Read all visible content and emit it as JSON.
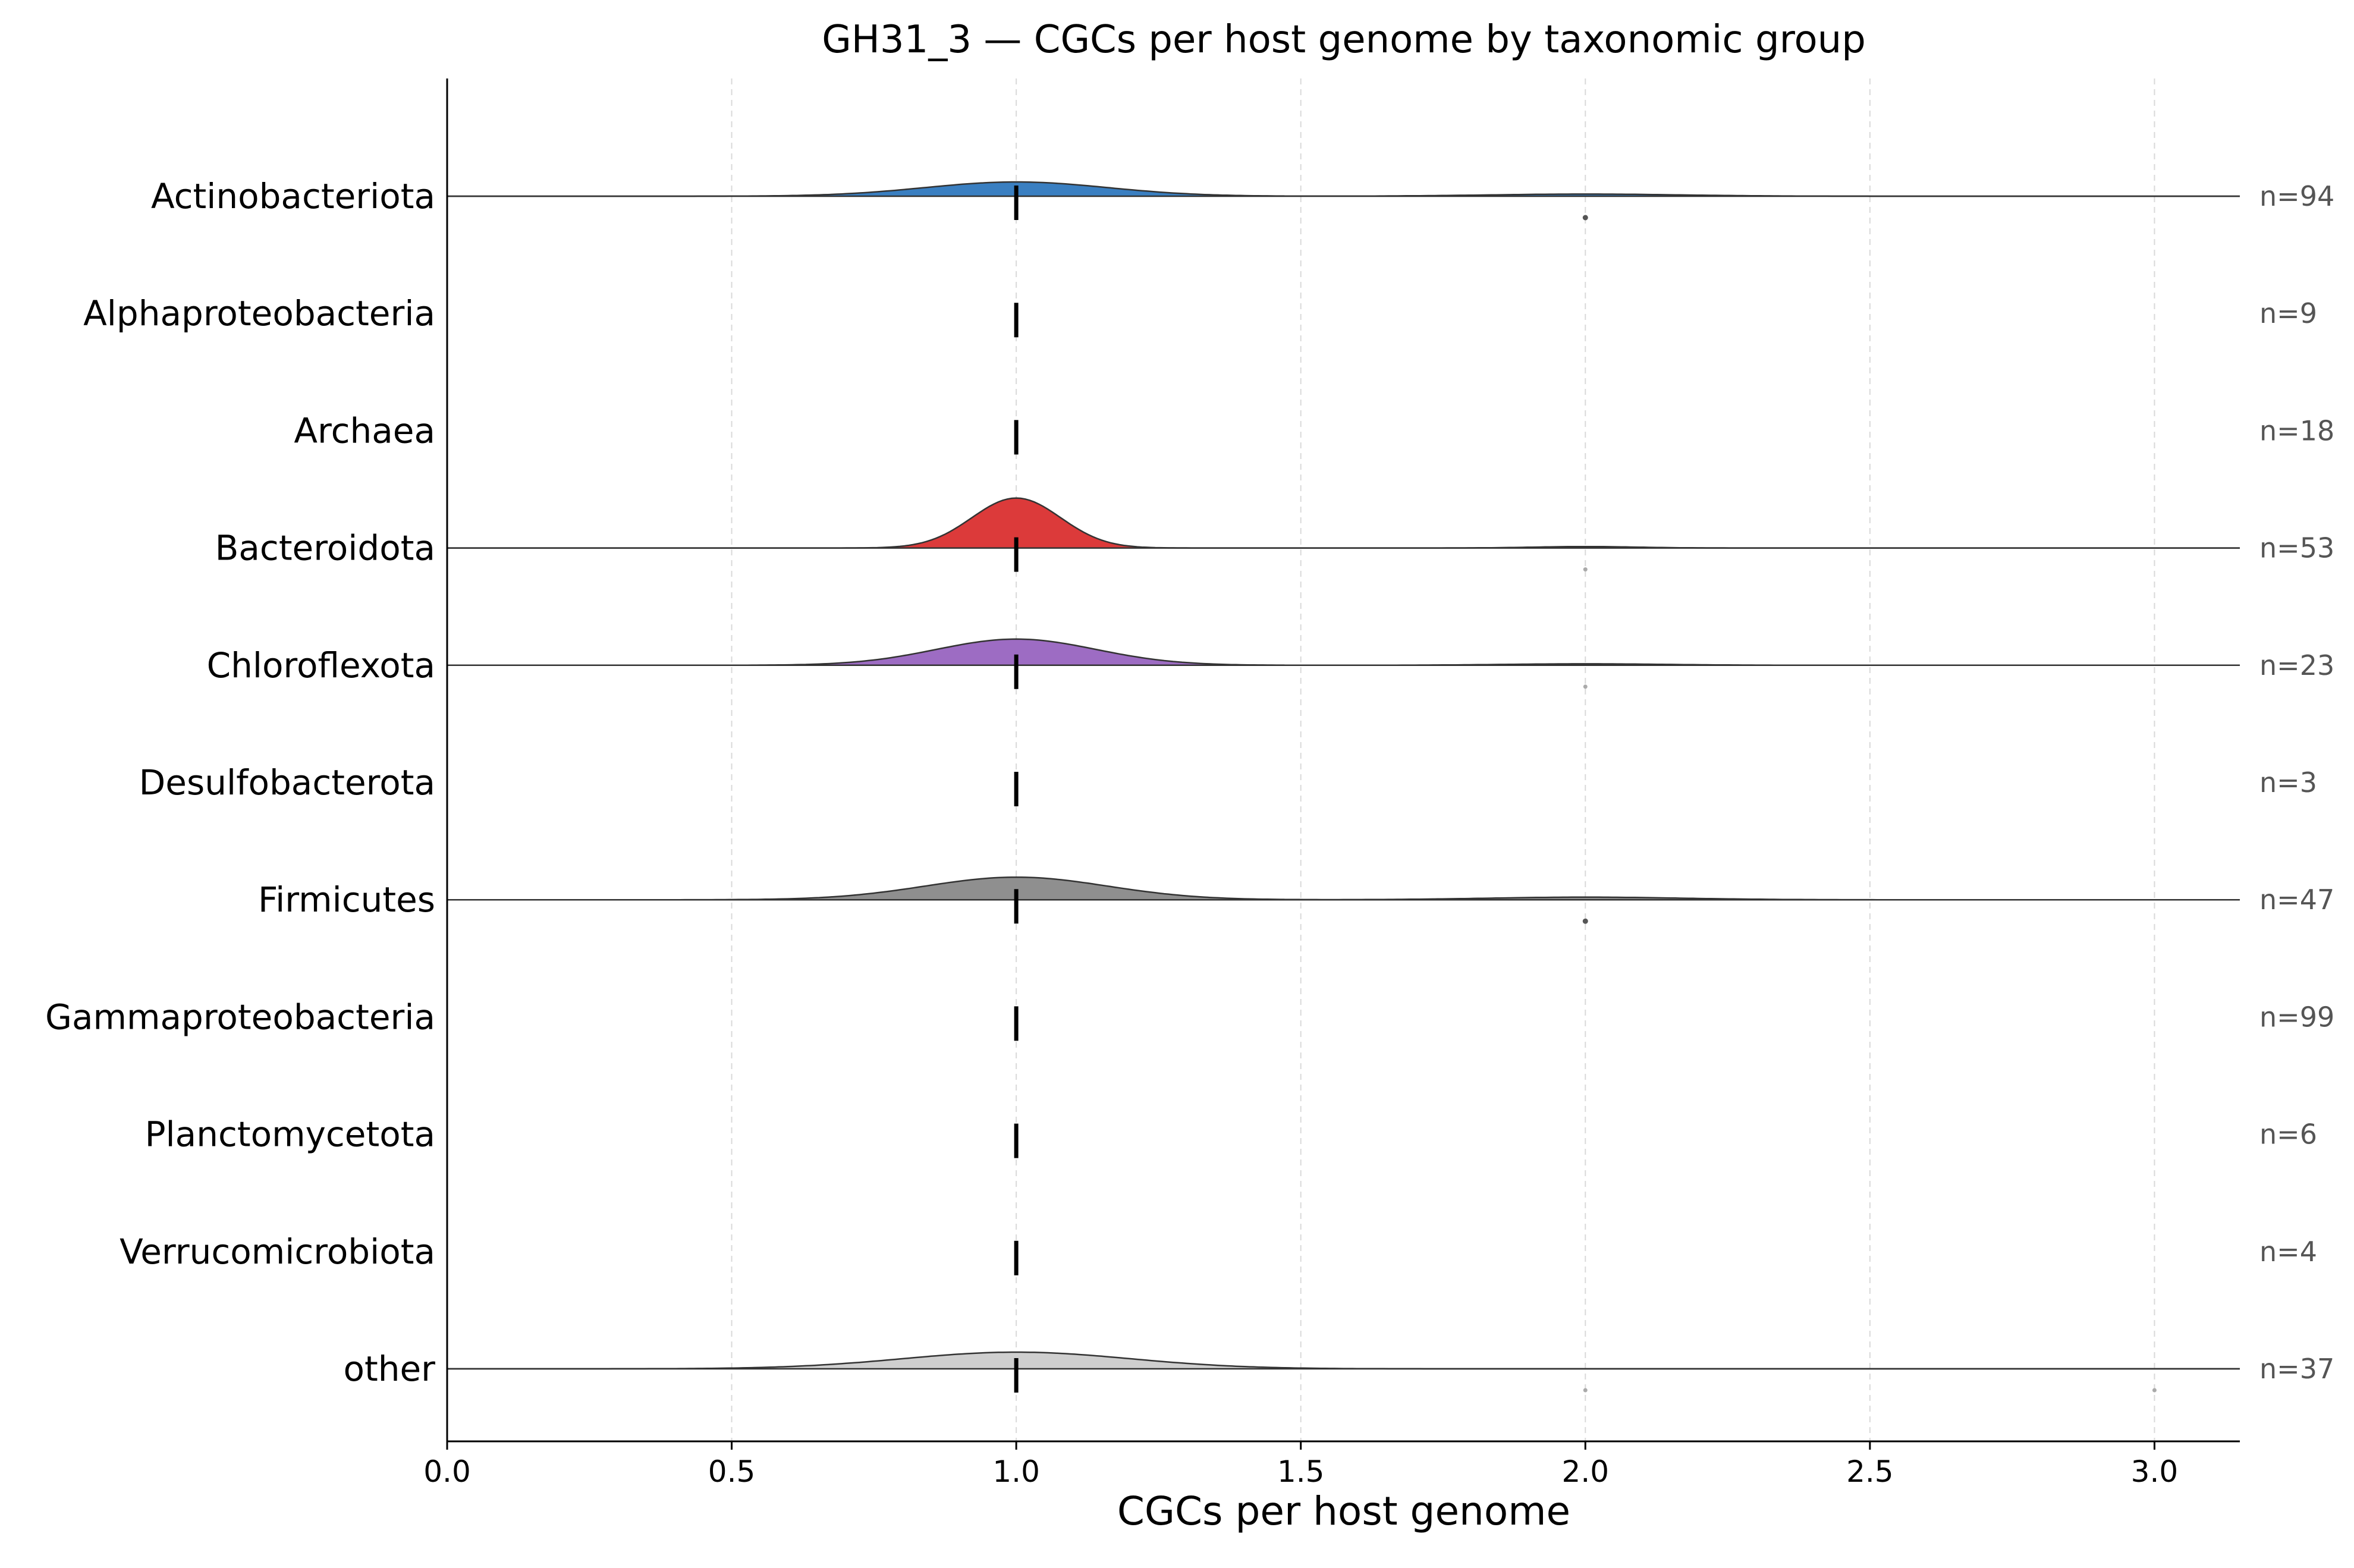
{
  "chart_data": {
    "type": "ridgeline",
    "title": "GH31_3 — CGCs per host genome by taxonomic group",
    "xlabel": "CGCs per host genome",
    "ylabel": "",
    "xlim": [
      0.0,
      3.15
    ],
    "xticks": [
      {
        "value": 0.0,
        "label": "0.0"
      },
      {
        "value": 0.5,
        "label": "0.5"
      },
      {
        "value": 1.0,
        "label": "1.0"
      },
      {
        "value": 1.5,
        "label": "1.5"
      },
      {
        "value": 2.0,
        "label": "2.0"
      },
      {
        "value": 2.5,
        "label": "2.5"
      },
      {
        "value": 3.0,
        "label": "3.0"
      }
    ],
    "grid_x": true,
    "median_marker": "vertical black tick at each group's median",
    "groups": [
      {
        "name": "Actinobacteriota",
        "n_label": "n=94",
        "n": 94,
        "color": "#3a7fc1",
        "median": 1.0,
        "density": [
          {
            "center": 1.0,
            "sd": 0.16,
            "height": 0.12
          },
          {
            "center": 2.0,
            "sd": 0.17,
            "height": 0.018
          }
        ],
        "outliers": [
          {
            "x": 2.0,
            "dark": true
          }
        ]
      },
      {
        "name": "Alphaproteobacteria",
        "n_label": "n=9",
        "n": 9,
        "color": "#ff8c1a",
        "median": 1.0,
        "density": [],
        "outliers": []
      },
      {
        "name": "Archaea",
        "n_label": "n=18",
        "n": 18,
        "color": "#2ca02c",
        "median": 1.0,
        "density": [],
        "outliers": []
      },
      {
        "name": "Bacteroidota",
        "n_label": "n=53",
        "n": 53,
        "color": "#dc3a3a",
        "median": 1.0,
        "density": [
          {
            "center": 1.0,
            "sd": 0.078,
            "height": 0.42
          },
          {
            "center": 2.0,
            "sd": 0.09,
            "height": 0.012
          }
        ],
        "outliers": [
          {
            "x": 2.0,
            "dark": false
          }
        ]
      },
      {
        "name": "Chloroflexota",
        "n_label": "n=23",
        "n": 23,
        "color": "#9d6cc3",
        "median": 1.0,
        "density": [
          {
            "center": 1.0,
            "sd": 0.14,
            "height": 0.22
          },
          {
            "center": 2.0,
            "sd": 0.14,
            "height": 0.012
          }
        ],
        "outliers": [
          {
            "x": 2.0,
            "dark": false
          }
        ]
      },
      {
        "name": "Desulfobacterota",
        "n_label": "n=3",
        "n": 3,
        "color": "#8c564b",
        "median": 1.0,
        "density": [],
        "outliers": []
      },
      {
        "name": "Firmicutes",
        "n_label": "n=47",
        "n": 47,
        "color": "#8f8f8f",
        "median": 1.0,
        "density": [
          {
            "center": 1.0,
            "sd": 0.16,
            "height": 0.19
          },
          {
            "center": 2.0,
            "sd": 0.17,
            "height": 0.022
          }
        ],
        "outliers": [
          {
            "x": 2.0,
            "dark": true
          }
        ]
      },
      {
        "name": "Gammaproteobacteria",
        "n_label": "n=99",
        "n": 99,
        "color": "#e377c2",
        "median": 1.0,
        "density": [],
        "outliers": []
      },
      {
        "name": "Planctomycetota",
        "n_label": "n=6",
        "n": 6,
        "color": "#bcbd22",
        "median": 1.0,
        "density": [],
        "outliers": []
      },
      {
        "name": "Verrucomicrobiota",
        "n_label": "n=4",
        "n": 4,
        "color": "#17becf",
        "median": 1.0,
        "density": [],
        "outliers": []
      },
      {
        "name": "other",
        "n_label": "n=37",
        "n": 37,
        "color": "#cfcfcf",
        "median": 1.0,
        "density": [
          {
            "center": 1.0,
            "sd": 0.2,
            "height": 0.14
          },
          {
            "center": 3.0,
            "sd": 0.2,
            "height": 0.0
          }
        ],
        "outliers": [
          {
            "x": 2.0,
            "dark": false
          },
          {
            "x": 3.0,
            "dark": false
          }
        ]
      }
    ]
  }
}
